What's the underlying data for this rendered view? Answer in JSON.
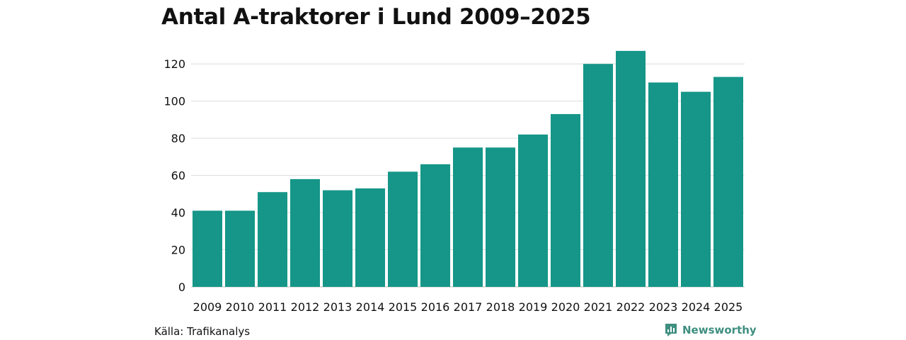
{
  "title": "Antal A-traktorer i Lund 2009–2025",
  "source": "Källa: Trafikanalys",
  "brand": {
    "name": "Newsworthy",
    "icon": "newsworthy-logo-icon"
  },
  "colors": {
    "bar": "#159688",
    "grid": "#dcdcdc",
    "text": "#111111",
    "brand": "#3f8f80"
  },
  "chart_data": {
    "type": "bar",
    "title": "Antal A-traktorer i Lund 2009–2025",
    "xlabel": "",
    "ylabel": "",
    "categories": [
      "2009",
      "2010",
      "2011",
      "2012",
      "2013",
      "2014",
      "2015",
      "2016",
      "2017",
      "2018",
      "2019",
      "2020",
      "2021",
      "2022",
      "2023",
      "2024",
      "2025"
    ],
    "values": [
      41,
      41,
      51,
      58,
      52,
      53,
      62,
      66,
      75,
      75,
      82,
      93,
      120,
      127,
      110,
      105,
      113
    ],
    "ylim": [
      0,
      130
    ],
    "yticks": [
      "0",
      "20",
      "40",
      "60",
      "80",
      "100",
      "120"
    ],
    "grid": true
  }
}
